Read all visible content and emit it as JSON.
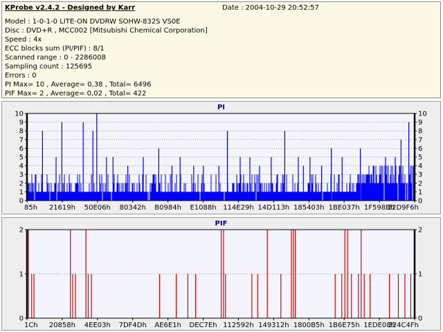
{
  "info": {
    "app_title": "KProbe v2.4.2 - Designed by Karr",
    "date": "Date : 2004-10-29 20:52:57",
    "lines": [
      "Model : 1-0-1-0 LITE-ON DVDRW SOHW-832S  VS0E",
      "Disc : DVD+R , MCC002 [Mitsubishi Chemical Corporation]",
      "Speed : 4x",
      "ECC blocks sum (PI/PIF) : 8/1",
      "Scanned range : 0 - 2286008",
      "Sampling count : 125695",
      "Errors : 0",
      "PI Max= 10 , Average= 0,38 , Total= 6496",
      "PIF Max= 2 , Average= 0,02 , Total= 422"
    ]
  },
  "chart_data": [
    {
      "type": "bar",
      "title": "PI",
      "ylim": [
        0,
        10
      ],
      "yticks": [
        "0",
        "1",
        "2",
        "3",
        "4",
        "5",
        "6",
        "7",
        "8",
        "9",
        "10"
      ],
      "xtick_labels": [
        "85h",
        "21619h",
        "50E06h",
        "80342h",
        "B0984h",
        "E1088h",
        "114E29h",
        "14D113h",
        "185403h",
        "1BE037h",
        "1F598Bh",
        "22D9F6h"
      ],
      "grid": true,
      "color": "#0000ff",
      "peaks": [
        {
          "x": 0.04,
          "y": 8
        },
        {
          "x": 0.075,
          "y": 5
        },
        {
          "x": 0.09,
          "y": 9
        },
        {
          "x": 0.145,
          "y": 9
        },
        {
          "x": 0.17,
          "y": 8
        },
        {
          "x": 0.18,
          "y": 10
        },
        {
          "x": 0.205,
          "y": 5
        },
        {
          "x": 0.222,
          "y": 5
        },
        {
          "x": 0.26,
          "y": 4
        },
        {
          "x": 0.3,
          "y": 5
        },
        {
          "x": 0.34,
          "y": 6
        },
        {
          "x": 0.374,
          "y": 4
        },
        {
          "x": 0.395,
          "y": 5
        },
        {
          "x": 0.43,
          "y": 4
        },
        {
          "x": 0.455,
          "y": 4
        },
        {
          "x": 0.495,
          "y": 4
        },
        {
          "x": 0.517,
          "y": 8
        },
        {
          "x": 0.55,
          "y": 5
        },
        {
          "x": 0.575,
          "y": 5
        },
        {
          "x": 0.6,
          "y": 4
        },
        {
          "x": 0.63,
          "y": 5
        },
        {
          "x": 0.665,
          "y": 8
        },
        {
          "x": 0.7,
          "y": 5
        },
        {
          "x": 0.713,
          "y": 4
        },
        {
          "x": 0.73,
          "y": 5
        },
        {
          "x": 0.76,
          "y": 4
        },
        {
          "x": 0.785,
          "y": 6
        },
        {
          "x": 0.813,
          "y": 5
        },
        {
          "x": 0.86,
          "y": 6
        },
        {
          "x": 0.895,
          "y": 4
        },
        {
          "x": 0.925,
          "y": 5
        },
        {
          "x": 0.95,
          "y": 5
        },
        {
          "x": 0.965,
          "y": 7
        },
        {
          "x": 0.985,
          "y": 9
        }
      ]
    },
    {
      "type": "bar",
      "title": "PIF",
      "ylim": [
        0,
        2
      ],
      "yticks": [
        "0",
        "1",
        "2"
      ],
      "xtick_labels": [
        "1Ch",
        "20858h",
        "4EE03h",
        "7DF4Dh",
        "AE6E1h",
        "DEC7Eh",
        "112592h",
        "149312h",
        "1800B5h",
        "1B6E75h",
        "1EDE08h",
        "224C4Fh"
      ],
      "grid": true,
      "color": "#e00000",
      "spikes": [
        {
          "x": 0.004,
          "y": 2
        },
        {
          "x": 0.012,
          "y": 1
        },
        {
          "x": 0.018,
          "y": 1
        },
        {
          "x": 0.112,
          "y": 2
        },
        {
          "x": 0.118,
          "y": 1
        },
        {
          "x": 0.125,
          "y": 1
        },
        {
          "x": 0.152,
          "y": 2
        },
        {
          "x": 0.158,
          "y": 1
        },
        {
          "x": 0.166,
          "y": 1
        },
        {
          "x": 0.342,
          "y": 1
        },
        {
          "x": 0.385,
          "y": 1
        },
        {
          "x": 0.415,
          "y": 1
        },
        {
          "x": 0.435,
          "y": 1
        },
        {
          "x": 0.501,
          "y": 2
        },
        {
          "x": 0.507,
          "y": 2
        },
        {
          "x": 0.512,
          "y": 1
        },
        {
          "x": 0.58,
          "y": 1
        },
        {
          "x": 0.595,
          "y": 1
        },
        {
          "x": 0.62,
          "y": 2
        },
        {
          "x": 0.655,
          "y": 1
        },
        {
          "x": 0.682,
          "y": 2
        },
        {
          "x": 0.687,
          "y": 2
        },
        {
          "x": 0.692,
          "y": 2
        },
        {
          "x": 0.795,
          "y": 1
        },
        {
          "x": 0.812,
          "y": 1
        },
        {
          "x": 0.82,
          "y": 2
        },
        {
          "x": 0.827,
          "y": 2
        },
        {
          "x": 0.837,
          "y": 1
        },
        {
          "x": 0.855,
          "y": 1
        },
        {
          "x": 0.862,
          "y": 2
        },
        {
          "x": 0.87,
          "y": 1
        },
        {
          "x": 0.885,
          "y": 1
        },
        {
          "x": 0.935,
          "y": 1
        },
        {
          "x": 0.958,
          "y": 1
        },
        {
          "x": 0.975,
          "y": 1
        },
        {
          "x": 0.99,
          "y": 1
        }
      ]
    }
  ]
}
